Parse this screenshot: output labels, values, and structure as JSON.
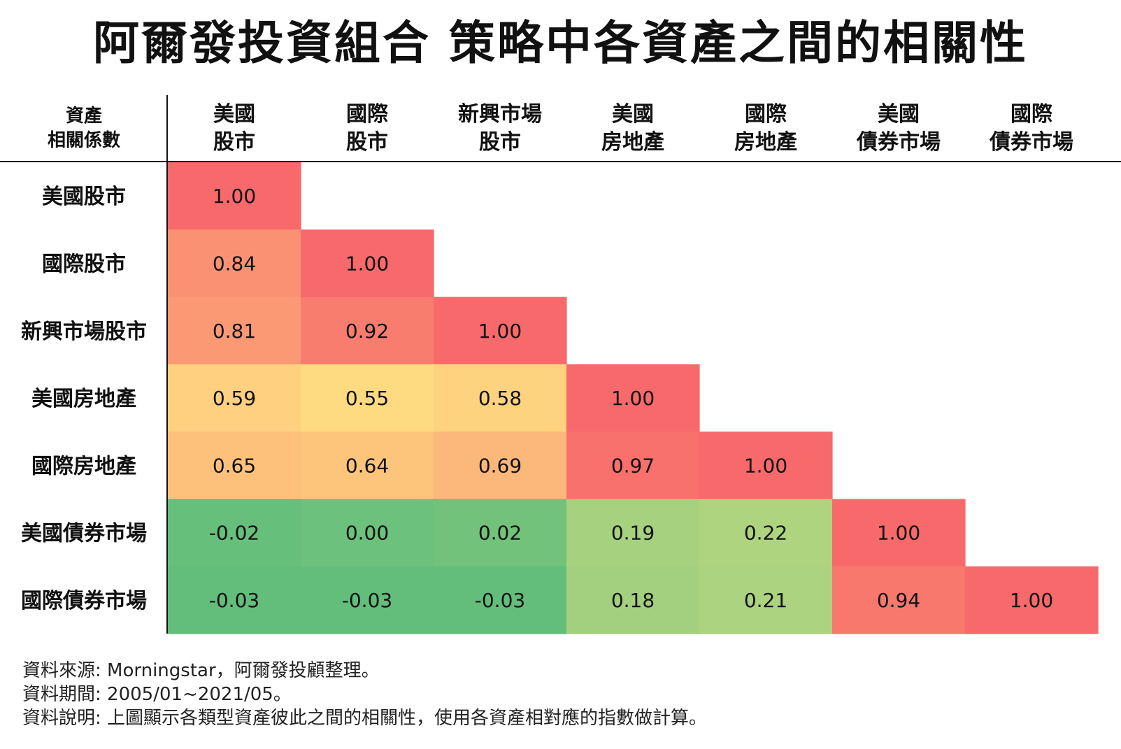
{
  "title": "阿爾發投資組合  策略中各資產之間的相關性",
  "notes": {
    "source": "資料來源: Morningstar，阿爾發投顧整理。",
    "period": "資料期間: 2005/01~2021/05。",
    "description": "資料說明: 上圖顯示各類型資產彼此之間的相關性，使用各資產相對應的指數做計算。"
  },
  "chart_data": {
    "type": "heatmap",
    "title": "阿爾發投資組合  策略中各資產之間的相關性",
    "corner_label": [
      "資產",
      "相關係數"
    ],
    "column_labels": [
      [
        "美國",
        "股市"
      ],
      [
        "國際",
        "股市"
      ],
      [
        "新興市場",
        "股市"
      ],
      [
        "美國",
        "房地產"
      ],
      [
        "國際",
        "房地產"
      ],
      [
        "美國",
        "債券市場"
      ],
      [
        "國際",
        "債券市場"
      ]
    ],
    "row_labels": [
      "美國股市",
      "國際股市",
      "新興市場股市",
      "美國房地產",
      "國際房地產",
      "美國債券市場",
      "國際債券市場"
    ],
    "value_labels": [
      [
        "1.00"
      ],
      [
        "0.84",
        "1.00"
      ],
      [
        "0.81",
        "0.92",
        "1.00"
      ],
      [
        "0.59",
        "0.55",
        "0.58",
        "1.00"
      ],
      [
        "0.65",
        "0.64",
        "0.69",
        "0.97",
        "1.00"
      ],
      [
        "-0.02",
        "0.00",
        "0.02",
        "0.19",
        "0.22",
        "1.00"
      ],
      [
        "-0.03",
        "-0.03",
        "-0.03",
        "0.18",
        "0.21",
        "0.94",
        "1.00"
      ]
    ],
    "values": [
      [
        1.0
      ],
      [
        0.84,
        1.0
      ],
      [
        0.81,
        0.92,
        1.0
      ],
      [
        0.59,
        0.55,
        0.58,
        1.0
      ],
      [
        0.65,
        0.64,
        0.69,
        0.97,
        1.0
      ],
      [
        -0.02,
        0.0,
        0.02,
        0.19,
        0.22,
        1.0
      ],
      [
        -0.03,
        -0.03,
        -0.03,
        0.18,
        0.21,
        0.94,
        1.0
      ]
    ],
    "color_scale": {
      "low": "#63be7b",
      "mid": "#ffeb84",
      "high": "#f8696b"
    }
  }
}
